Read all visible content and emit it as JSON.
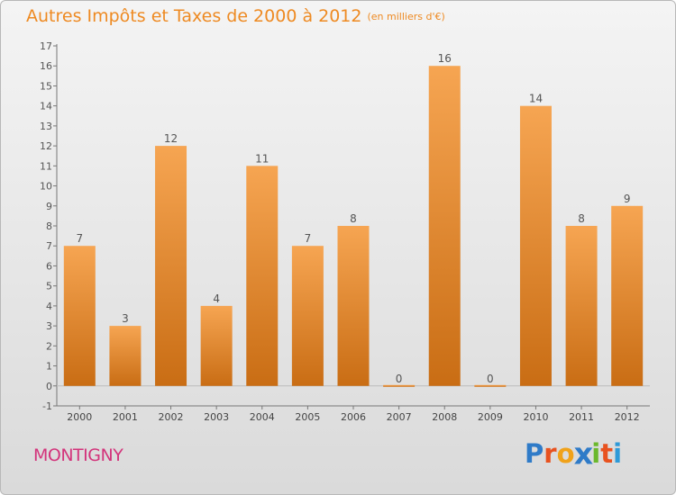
{
  "header": {
    "title": "Autres Impôts et Taxes de 2000 à 2012",
    "unit": "(en milliers d'€)"
  },
  "footer": {
    "commune": "MONTIGNY",
    "logo_text": "Proxiti"
  },
  "colors": {
    "bar_light": "#f6a552",
    "bar_dark": "#c96d14",
    "title": "#ee8a22",
    "commune": "#d3347b",
    "logo_letters": [
      "#2f7bc8",
      "#e8521f",
      "#f0a21a",
      "#2f7bc8",
      "#6bb82c",
      "#e8521f",
      "#2f9ad8"
    ]
  },
  "chart_data": {
    "type": "bar",
    "title": "Autres Impôts et Taxes de 2000 à 2012",
    "subtitle": "(en milliers d'€)",
    "categories": [
      "2000",
      "2001",
      "2002",
      "2003",
      "2004",
      "2005",
      "2006",
      "2007",
      "2008",
      "2009",
      "2010",
      "2011",
      "2012"
    ],
    "values": [
      7,
      3,
      12,
      4,
      11,
      7,
      8,
      0,
      16,
      0,
      14,
      8,
      9
    ],
    "xlabel": "",
    "ylabel": "",
    "ylim": [
      -1,
      17
    ],
    "yticks": [
      -1,
      0,
      1,
      2,
      3,
      4,
      5,
      6,
      7,
      8,
      9,
      10,
      11,
      12,
      13,
      14,
      15,
      16,
      17
    ],
    "grid": false,
    "data_labels": true,
    "legend": "none"
  }
}
